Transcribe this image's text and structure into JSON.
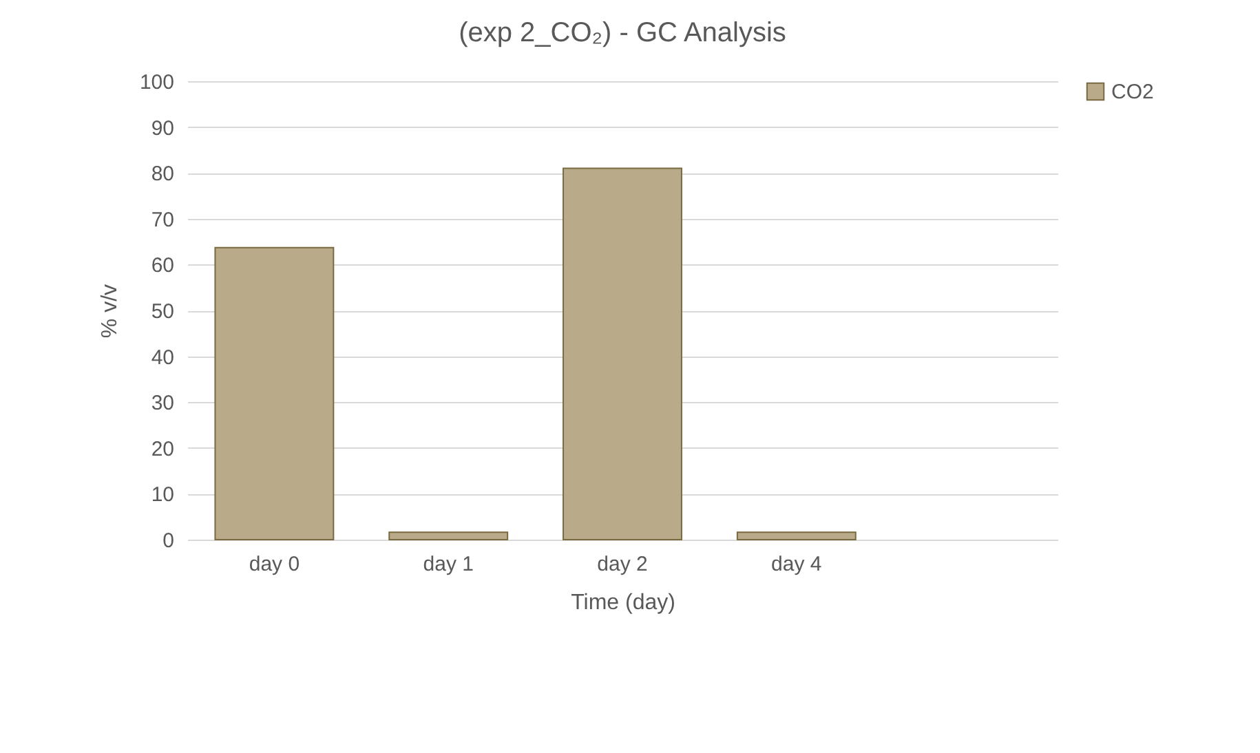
{
  "chart_data": {
    "type": "bar",
    "title": "(exp 2_CO₂) - GC Analysis",
    "xlabel": "Time (day)",
    "ylabel": "% v/v",
    "categories": [
      "day 0",
      "day 1",
      "day 2",
      "day 4",
      null
    ],
    "series": [
      {
        "name": "CO2",
        "color": "#b9ab89",
        "values": [
          63.7,
          1.6,
          81,
          1.6,
          null
        ]
      }
    ],
    "ylim": [
      0,
      100
    ],
    "yticks": [
      0,
      10,
      20,
      30,
      40,
      50,
      60,
      70,
      80,
      90,
      100
    ],
    "grid": "y",
    "legend": "right"
  }
}
